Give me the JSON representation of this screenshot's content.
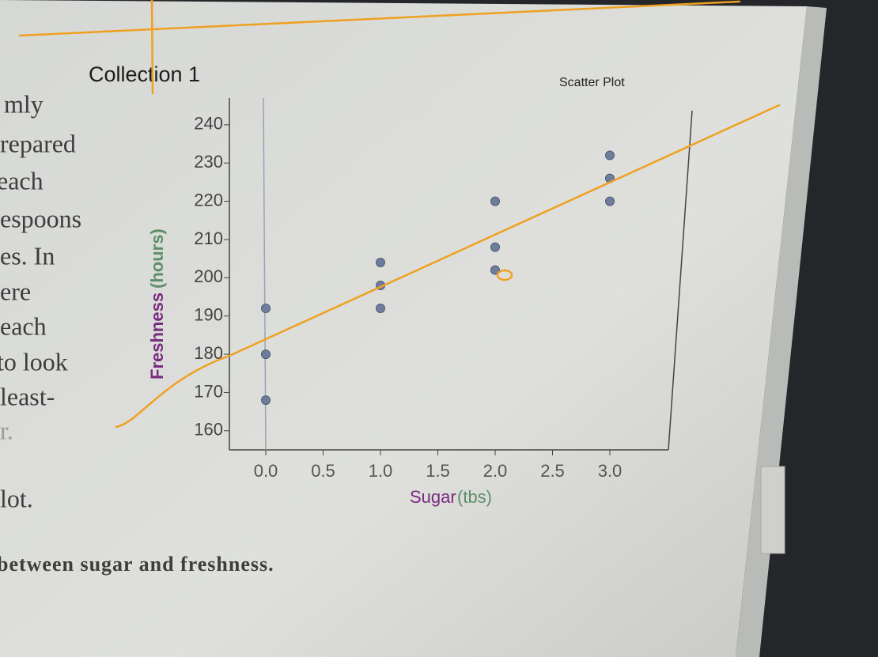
{
  "chart_data": {
    "type": "scatter",
    "title": "Collection 1",
    "subtitle": "Scatter Plot",
    "xlabel": "Sugar",
    "xlabel_unit": "(tbs)",
    "ylabel": "Freshness",
    "ylabel_unit": "(hours)",
    "x": [
      0,
      0,
      0,
      1,
      1,
      1,
      2,
      2,
      2,
      3,
      3,
      3
    ],
    "values": [
      192,
      180,
      168,
      204,
      198,
      192,
      220,
      208,
      202,
      232,
      226,
      220
    ],
    "color": "#6f7d9c",
    "xlim": [
      -0.3,
      3.6
    ],
    "ylim": [
      155,
      247
    ],
    "xticks": [
      {
        "value": 0,
        "label": "0.0"
      },
      {
        "value": 0.5,
        "label": "0.5"
      },
      {
        "value": 1,
        "label": "1.0"
      },
      {
        "value": 1.5,
        "label": "1.5"
      },
      {
        "value": 2,
        "label": "2.0"
      },
      {
        "value": 2.5,
        "label": "2.5"
      },
      {
        "value": 3,
        "label": "3.0"
      }
    ],
    "yticks": [
      160,
      170,
      180,
      190,
      200,
      210,
      220,
      230,
      240
    ],
    "grid": false
  },
  "page_text": [
    "mly",
    "repared",
    "each",
    "espoons",
    "es. In",
    "ere",
    "each",
    "to look",
    "least-",
    "r.",
    "lot.",
    "between sugar and freshness."
  ]
}
